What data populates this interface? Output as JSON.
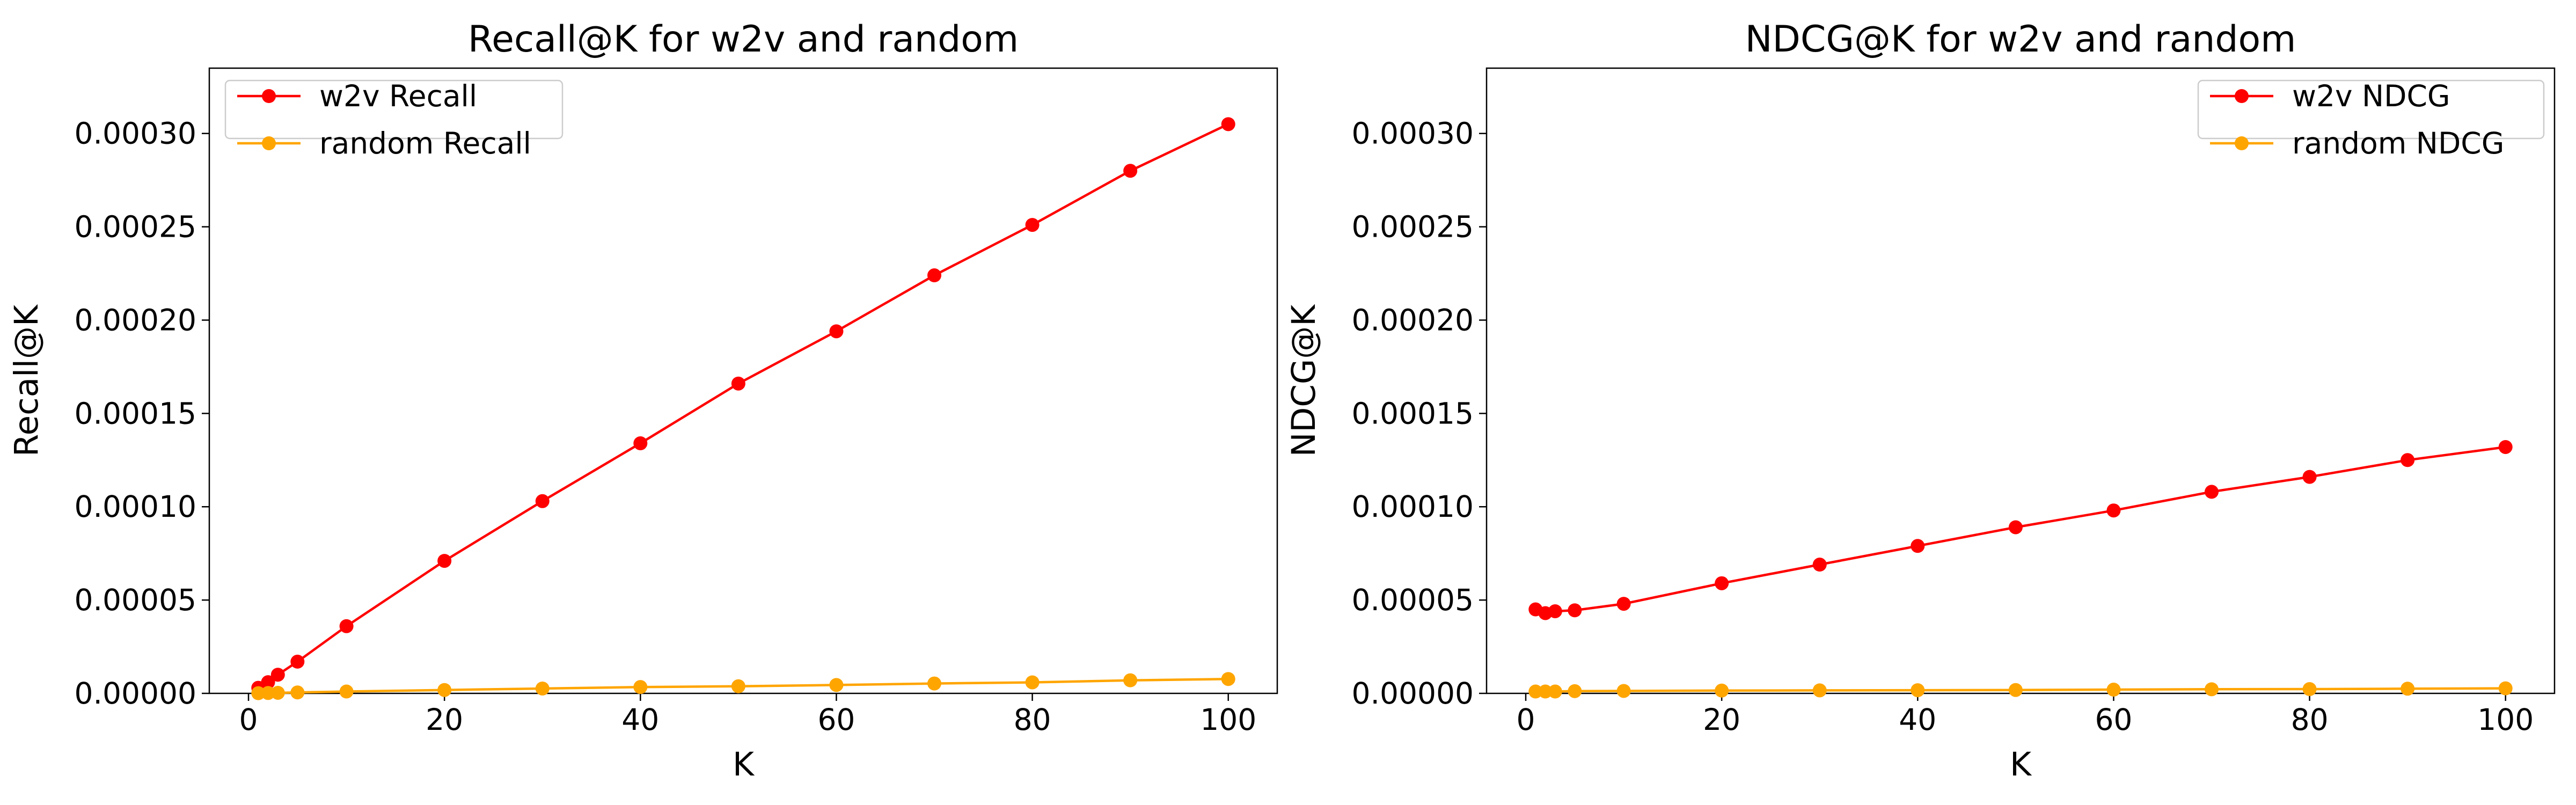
{
  "chart_data": [
    {
      "type": "line",
      "title": "Recall@K for w2v and random",
      "xlabel": "K",
      "ylabel": "Recall@K",
      "xlim": [
        -4,
        105
      ],
      "ylim": [
        0,
        0.000335
      ],
      "x_ticks": [
        0,
        20,
        40,
        60,
        80,
        100
      ],
      "y_ticks": [
        0,
        5e-05,
        0.0001,
        0.00015,
        0.0002,
        0.00025,
        0.0003
      ],
      "x_tick_labels": [
        "0",
        "20",
        "40",
        "60",
        "80",
        "100"
      ],
      "y_tick_labels": [
        "0.00000",
        "0.00005",
        "0.00010",
        "0.00015",
        "0.00020",
        "0.00025",
        "0.00030"
      ],
      "legend_position": "top-left",
      "grid": false,
      "x": [
        1,
        2,
        3,
        5,
        10,
        20,
        30,
        40,
        50,
        60,
        70,
        80,
        90,
        100
      ],
      "series": [
        {
          "name": "w2v Recall",
          "color": "#ff0000",
          "values": [
            3e-06,
            6e-06,
            1e-05,
            1.7e-05,
            3.6e-05,
            7.1e-05,
            0.000103,
            0.000134,
            0.000166,
            0.000194,
            0.000224,
            0.000251,
            0.00028,
            0.000305
          ]
        },
        {
          "name": "random Recall",
          "color": "#ffa500",
          "values": [
            1e-07,
            2e-07,
            3e-07,
            5e-07,
            1e-06,
            1.8e-06,
            2.6e-06,
            3.4e-06,
            3.8e-06,
            4.5e-06,
            5.3e-06,
            5.9e-06,
            7e-06,
            7.7e-06
          ]
        }
      ]
    },
    {
      "type": "line",
      "title": "NDCG@K for w2v and random",
      "xlabel": "K",
      "ylabel": "NDCG@K",
      "xlim": [
        -4,
        105
      ],
      "ylim": [
        0,
        0.000335
      ],
      "x_ticks": [
        0,
        20,
        40,
        60,
        80,
        100
      ],
      "y_ticks": [
        0,
        5e-05,
        0.0001,
        0.00015,
        0.0002,
        0.00025,
        0.0003
      ],
      "x_tick_labels": [
        "0",
        "20",
        "40",
        "60",
        "80",
        "100"
      ],
      "y_tick_labels": [
        "0.00000",
        "0.00005",
        "0.00010",
        "0.00015",
        "0.00020",
        "0.00025",
        "0.00030"
      ],
      "legend_position": "top-right",
      "grid": false,
      "x": [
        1,
        2,
        3,
        5,
        10,
        20,
        30,
        40,
        50,
        60,
        70,
        80,
        90,
        100
      ],
      "series": [
        {
          "name": "w2v NDCG",
          "color": "#ff0000",
          "values": [
            4.5e-05,
            4.3e-05,
            4.4e-05,
            4.45e-05,
            4.8e-05,
            5.9e-05,
            6.9e-05,
            7.9e-05,
            8.9e-05,
            9.8e-05,
            0.000108,
            0.000116,
            0.000125,
            0.000132
          ]
        },
        {
          "name": "random NDCG",
          "color": "#ffa500",
          "values": [
            1e-06,
            1e-06,
            1e-06,
            1.2e-06,
            1.3e-06,
            1.5e-06,
            1.6e-06,
            1.7e-06,
            1.8e-06,
            2e-06,
            2.2e-06,
            2.3e-06,
            2.5e-06,
            2.7e-06
          ]
        }
      ]
    }
  ]
}
